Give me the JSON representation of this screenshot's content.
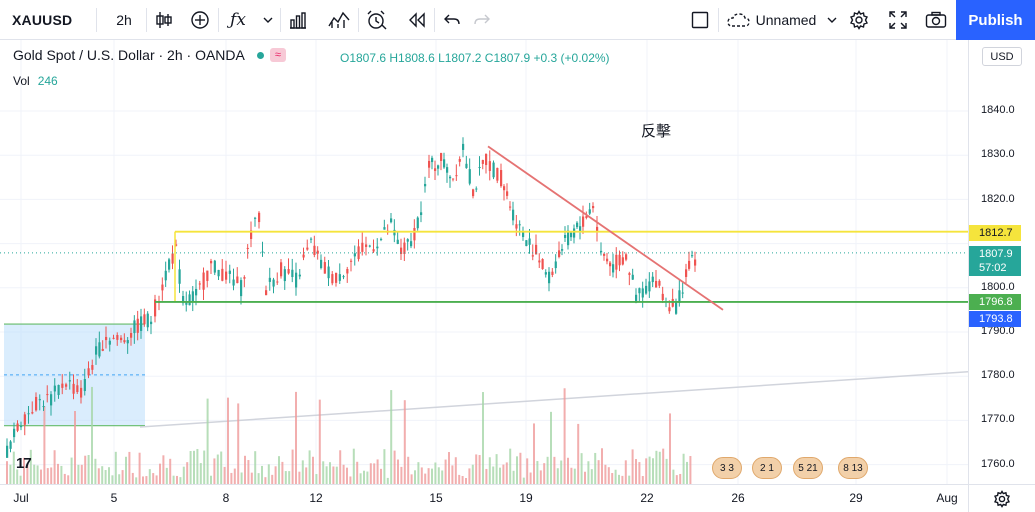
{
  "toolbar": {
    "symbol": "XAUUSD",
    "interval": "2h",
    "layout_name": "Unnamed",
    "publish_label": "Publish",
    "icons": [
      "plus-circle-icon",
      "candles-icon",
      "fx-icon",
      "chevron-down-icon",
      "bar-chart-icon",
      "indicator-icon",
      "alarm-icon",
      "replay-icon",
      "undo-icon",
      "redo-icon",
      "square-icon",
      "cloud-icon",
      "gear-icon",
      "fullscreen-icon",
      "camera-icon"
    ]
  },
  "legend": {
    "title": "Gold Spot / U.S. Dollar · 2h · OANDA",
    "ohlc": "O1807.6 H1808.6 L1807.2 C1807.9 +0.3 (+0.02%)",
    "vol_label": "Vol",
    "vol_value": "246"
  },
  "annotation": "反擊",
  "price_axis": {
    "currency": "USD",
    "ticks": [
      "1840.0",
      "1830.0",
      "1820.0",
      "1800.0",
      "1790.0",
      "1780.0",
      "1770.0",
      "1760.0"
    ],
    "tags": {
      "resistance": "1812.7",
      "last_price": "1807.9",
      "countdown": "57:02",
      "support": "1796.8",
      "low": "1793.8"
    }
  },
  "time_axis": {
    "labels": [
      "Jul",
      "5",
      "8",
      "12",
      "15",
      "19",
      "22",
      "26",
      "29",
      "Aug"
    ]
  },
  "events": [
    "3 3",
    "2 1",
    "5 21",
    "8 13"
  ],
  "logo": "17",
  "colors": {
    "up": "#26a69a",
    "down": "#ef5350",
    "resistance": "#f5e43c",
    "support": "#4caf50",
    "trendline": "#e57373",
    "accent": "#2962ff"
  }
}
